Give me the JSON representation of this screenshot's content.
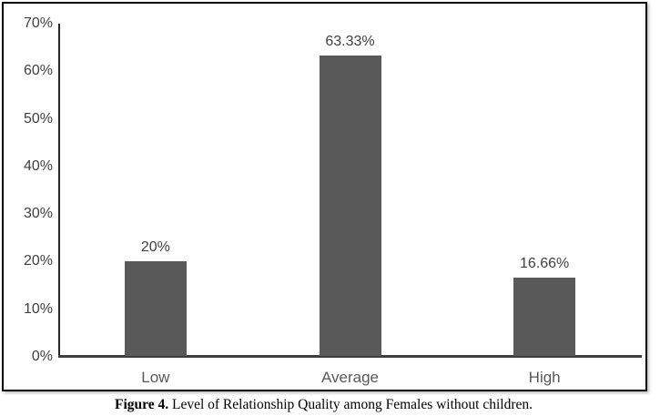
{
  "chart_data": {
    "type": "bar",
    "title": "",
    "xlabel": "",
    "ylabel": "",
    "categories": [
      "Low",
      "Average",
      "High"
    ],
    "values": [
      20,
      63.33,
      16.66
    ],
    "data_labels": [
      "20%",
      "63.33%",
      "16.66%"
    ],
    "y_ticks": [
      0,
      10,
      20,
      30,
      40,
      50,
      60,
      70
    ],
    "y_tick_labels": [
      "0%",
      "10%",
      "20%",
      "30%",
      "40%",
      "50%",
      "60%",
      "70%"
    ],
    "ylim": [
      0,
      70
    ],
    "grid": "off",
    "legend": "none",
    "bar_color": "#595959",
    "axis_color": "#262626",
    "label_color": "#404040"
  },
  "caption": {
    "label": "Figure 4.",
    "text": " Level of Relationship Quality among Females without children."
  }
}
